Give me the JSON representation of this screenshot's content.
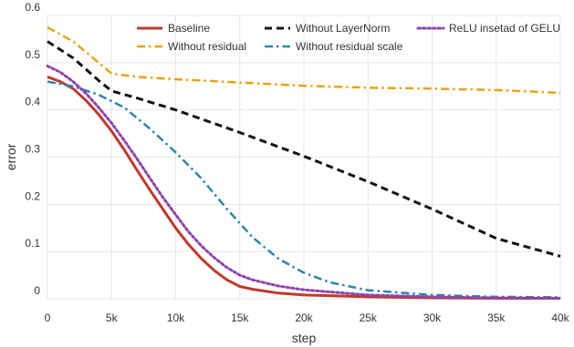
{
  "chart_data": {
    "type": "line",
    "xlabel": "step",
    "ylabel": "error",
    "xlim": [
      0,
      40000
    ],
    "ylim": [
      0,
      0.6
    ],
    "grid": true,
    "legend": "top",
    "x_ticks": [
      {
        "value": 0,
        "label": "0"
      },
      {
        "value": 5000,
        "label": "5k"
      },
      {
        "value": 10000,
        "label": "10k"
      },
      {
        "value": 15000,
        "label": "15k"
      },
      {
        "value": 20000,
        "label": "20k"
      },
      {
        "value": 25000,
        "label": "25k"
      },
      {
        "value": 30000,
        "label": "30k"
      },
      {
        "value": 35000,
        "label": "35k"
      },
      {
        "value": 40000,
        "label": "40k"
      }
    ],
    "y_ticks": [
      {
        "value": 0,
        "label": "0"
      },
      {
        "value": 0.1,
        "label": "0.1"
      },
      {
        "value": 0.2,
        "label": "0.2"
      },
      {
        "value": 0.3,
        "label": "0.3"
      },
      {
        "value": 0.4,
        "label": "0.4"
      },
      {
        "value": 0.5,
        "label": "0.5"
      },
      {
        "value": 0.6,
        "label": "0.6"
      }
    ],
    "series": [
      {
        "name": "Baseline",
        "color": "#c0392b",
        "dash": "solid",
        "points": [
          [
            0,
            0.47
          ],
          [
            1000,
            0.46
          ],
          [
            2000,
            0.445
          ],
          [
            3000,
            0.42
          ],
          [
            4000,
            0.39
          ],
          [
            5000,
            0.355
          ],
          [
            6000,
            0.315
          ],
          [
            7000,
            0.272
          ],
          [
            8000,
            0.23
          ],
          [
            9000,
            0.19
          ],
          [
            10000,
            0.15
          ],
          [
            11000,
            0.115
          ],
          [
            12000,
            0.085
          ],
          [
            13000,
            0.06
          ],
          [
            14000,
            0.04
          ],
          [
            15000,
            0.026
          ],
          [
            16000,
            0.02
          ],
          [
            18000,
            0.012
          ],
          [
            20000,
            0.008
          ],
          [
            25000,
            0.004
          ],
          [
            30000,
            0.002
          ],
          [
            35000,
            0.001
          ],
          [
            40000,
            0.001
          ]
        ]
      },
      {
        "name": "Without residual",
        "color": "#e8a317",
        "dash": "dashdot",
        "points": [
          [
            0,
            0.575
          ],
          [
            2000,
            0.545
          ],
          [
            4000,
            0.5
          ],
          [
            5000,
            0.477
          ],
          [
            7000,
            0.47
          ],
          [
            10000,
            0.465
          ],
          [
            15000,
            0.458
          ],
          [
            20000,
            0.451
          ],
          [
            25000,
            0.447
          ],
          [
            30000,
            0.445
          ],
          [
            35000,
            0.442
          ],
          [
            40000,
            0.436
          ]
        ]
      },
      {
        "name": "Without LayerNorm",
        "color": "#111111",
        "dash": "dashed",
        "points": [
          [
            0,
            0.545
          ],
          [
            2000,
            0.51
          ],
          [
            4000,
            0.462
          ],
          [
            5000,
            0.44
          ],
          [
            7000,
            0.425
          ],
          [
            10000,
            0.4
          ],
          [
            15000,
            0.352
          ],
          [
            20000,
            0.302
          ],
          [
            25000,
            0.248
          ],
          [
            30000,
            0.19
          ],
          [
            35000,
            0.128
          ],
          [
            40000,
            0.09
          ]
        ]
      },
      {
        "name": "Without residual scale",
        "color": "#2e86ab",
        "dash": "dashdot",
        "points": [
          [
            0,
            0.46
          ],
          [
            2000,
            0.45
          ],
          [
            4000,
            0.432
          ],
          [
            6000,
            0.405
          ],
          [
            8000,
            0.36
          ],
          [
            10000,
            0.31
          ],
          [
            12000,
            0.255
          ],
          [
            14000,
            0.19
          ],
          [
            16000,
            0.13
          ],
          [
            18000,
            0.085
          ],
          [
            20000,
            0.055
          ],
          [
            22000,
            0.035
          ],
          [
            25000,
            0.018
          ],
          [
            30000,
            0.008
          ],
          [
            35000,
            0.004
          ],
          [
            40000,
            0.003
          ]
        ]
      },
      {
        "name": "ReLU insetad of GELU",
        "color": "#8e44ad",
        "dash": "dotted",
        "points": [
          [
            0,
            0.493
          ],
          [
            1000,
            0.48
          ],
          [
            2000,
            0.46
          ],
          [
            3000,
            0.435
          ],
          [
            4000,
            0.405
          ],
          [
            5000,
            0.372
          ],
          [
            6000,
            0.335
          ],
          [
            7000,
            0.296
          ],
          [
            8000,
            0.255
          ],
          [
            9000,
            0.215
          ],
          [
            10000,
            0.178
          ],
          [
            11000,
            0.142
          ],
          [
            12000,
            0.112
          ],
          [
            13000,
            0.087
          ],
          [
            14000,
            0.066
          ],
          [
            15000,
            0.05
          ],
          [
            16000,
            0.04
          ],
          [
            18000,
            0.027
          ],
          [
            20000,
            0.019
          ],
          [
            25000,
            0.008
          ],
          [
            30000,
            0.004
          ],
          [
            35000,
            0.002
          ],
          [
            40000,
            0.001
          ]
        ]
      }
    ]
  }
}
